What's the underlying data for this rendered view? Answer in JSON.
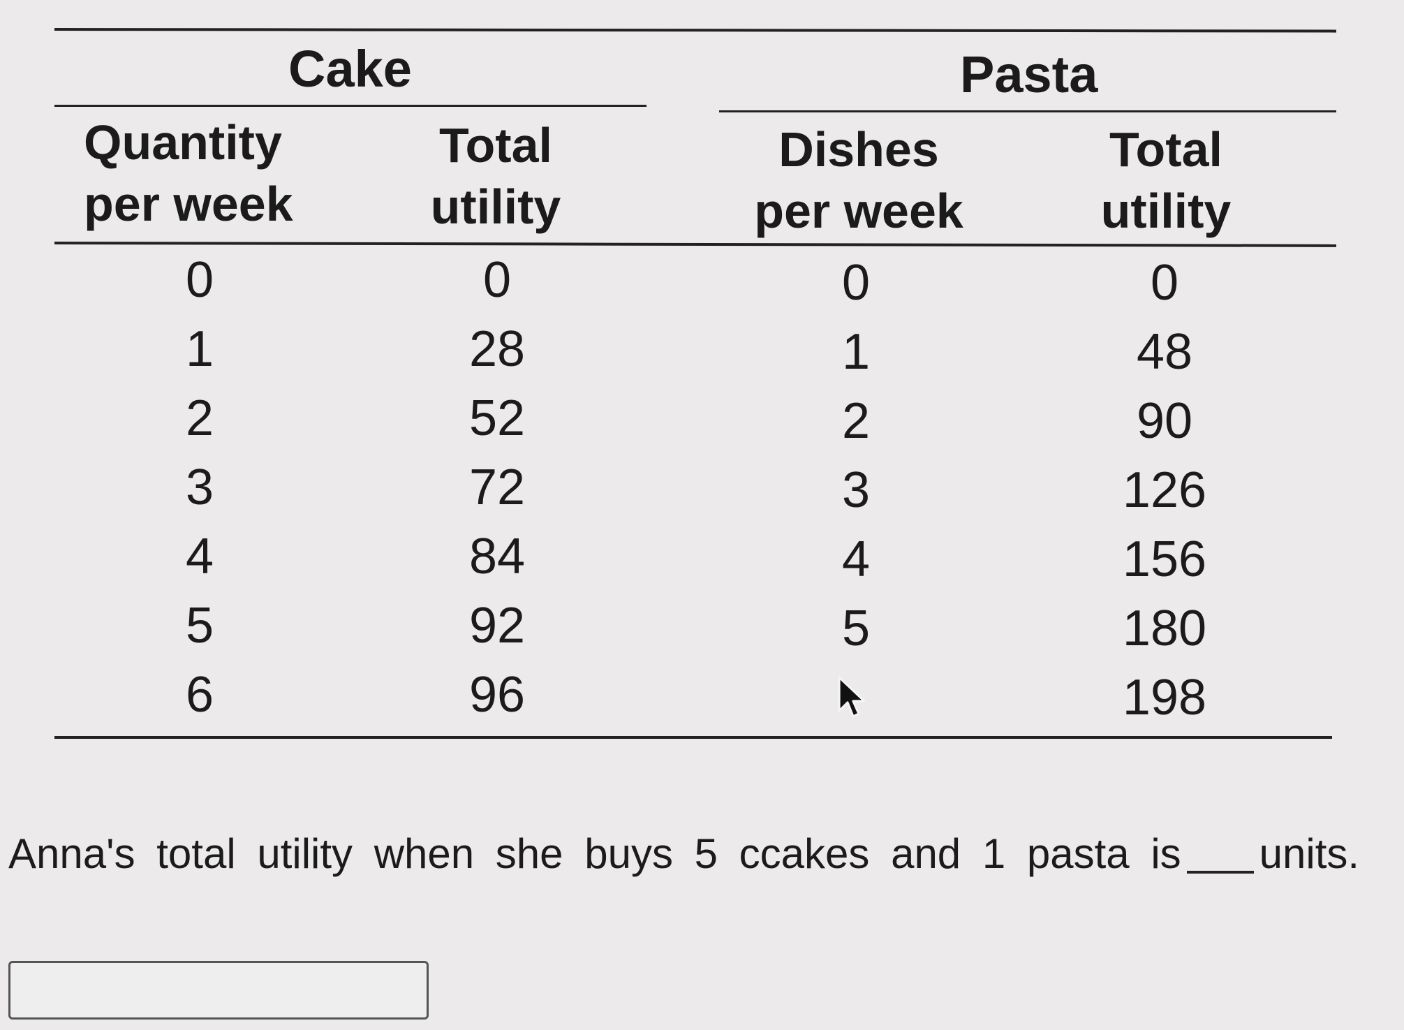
{
  "table": {
    "cake": {
      "title": "Cake",
      "col1_header": [
        "Quantity",
        "per week"
      ],
      "col2_header": [
        "Total",
        "utility"
      ],
      "quantities": [
        "0",
        "1",
        "2",
        "3",
        "4",
        "5",
        "6"
      ],
      "utilities": [
        "0",
        "28",
        "52",
        "72",
        "84",
        "92",
        "96"
      ]
    },
    "pasta": {
      "title": "Pasta",
      "col1_header": [
        "Dishes",
        "per week"
      ],
      "col2_header": [
        "Total",
        "utility"
      ],
      "quantities": [
        "0",
        "1",
        "2",
        "3",
        "4",
        "5",
        ""
      ],
      "utilities": [
        "0",
        "48",
        "90",
        "126",
        "156",
        "180",
        "198"
      ]
    }
  },
  "question": {
    "before_blank": "Anna's total utility when she buys 5 ccakes and 1 pasta is",
    "after_blank": "units."
  },
  "answer": {
    "value": ""
  },
  "icons": {
    "cursor": "mouse-pointer-icon"
  }
}
